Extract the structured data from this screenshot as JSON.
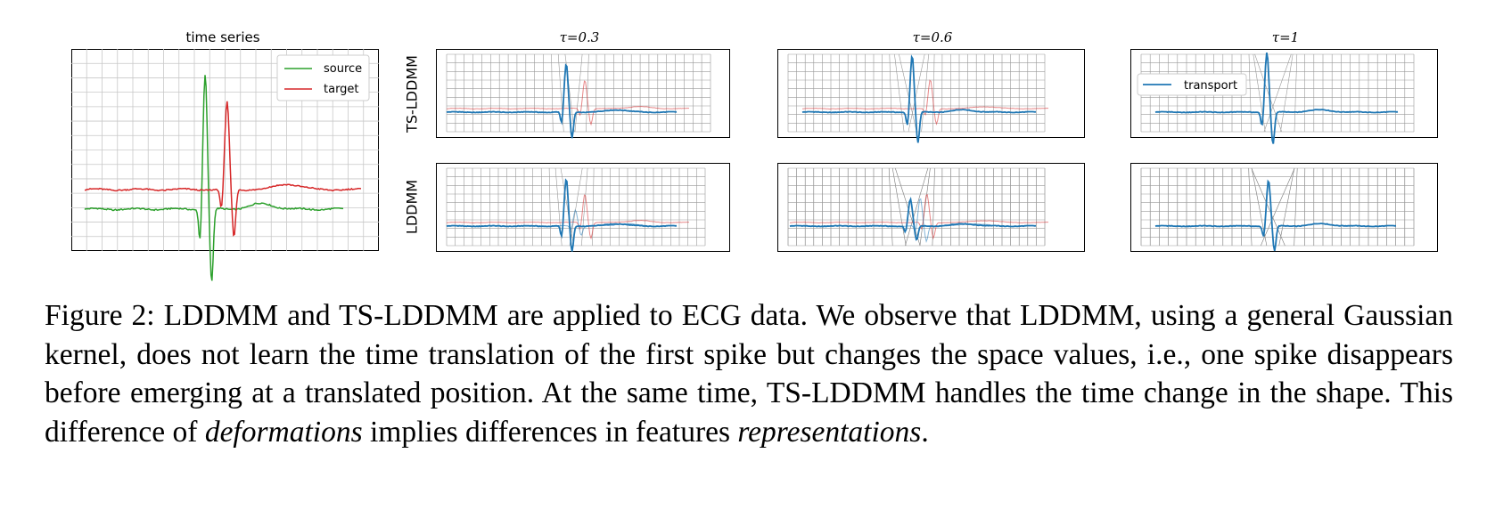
{
  "titles": {
    "time_series": "time series",
    "tau_03": "τ=0.3",
    "tau_06": "τ=0.6",
    "tau_1": "τ=1"
  },
  "row_labels": {
    "ts_lddmm": "TS-LDDMM",
    "lddmm": "LDDMM"
  },
  "legend": {
    "source": "source",
    "target": "target",
    "transport": "transport"
  },
  "caption": {
    "part1": "Figure 2: LDDMM and TS-LDDMM are applied to ECG data. We observe that LDDMM, using a general Gaussian kernel, does not learn the time translation of the first spike but changes the space values, i.e., one spike disappears before emerging at a translated position. At the same time, TS-LDDMM handles the time change in the shape. This difference of ",
    "em1": "deformations",
    "part2": " implies differences in features ",
    "em2": "representations",
    "part3": "."
  },
  "colors": {
    "source": "#2ca02c",
    "target": "#d62728",
    "transport": "#1f77b4",
    "grid": "#9a9a9a"
  }
}
